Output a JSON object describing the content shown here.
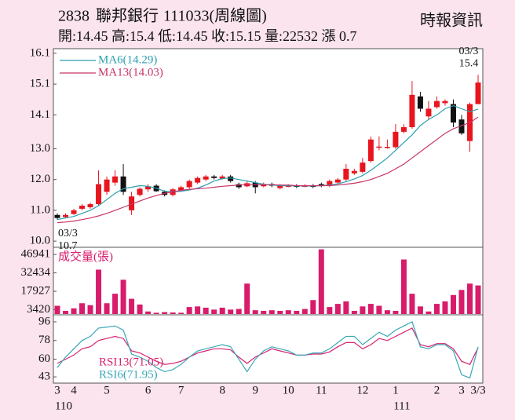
{
  "header": {
    "code": "2838",
    "name": "聯邦銀行",
    "date": "111033(周線圖)",
    "source": "時報資訊",
    "quote": "開:14.45 高:15.4 低:14.45 收:15.15 量:22532 漲 0.7"
  },
  "chart_data": [
    {
      "type": "candlestick",
      "up_color": "#e8141e",
      "down_color": "#111111",
      "ylim": [
        9.85,
        16.25
      ],
      "yticks": [
        {
          "value": 10,
          "label": "10.0"
        },
        {
          "value": 11,
          "label": "11.0"
        },
        {
          "value": 12,
          "label": "12.0"
        },
        {
          "value": 13,
          "label": "13.0"
        },
        14.1,
        15.1,
        16.1
      ],
      "open": [
        10.85,
        10.78,
        10.88,
        11.05,
        11.1,
        11.2,
        11.6,
        11.9,
        12.1,
        11.0,
        11.5,
        11.68,
        11.8,
        11.6,
        11.5,
        11.65,
        11.75,
        11.9,
        12.0,
        12.1,
        12.03,
        12.1,
        11.85,
        11.78,
        11.9,
        11.78,
        11.85,
        11.72,
        11.78,
        11.8,
        11.78,
        11.8,
        11.85,
        11.8,
        11.9,
        12.0,
        12.2,
        12.25,
        12.6,
        13.05,
        13.04,
        13.05,
        13.55,
        13.7,
        14.7,
        14.05,
        14.35,
        14.48,
        14.45,
        13.95,
        13.25,
        14.45
      ],
      "high": [
        10.9,
        10.9,
        11.05,
        11.2,
        11.25,
        12.3,
        12.1,
        12.3,
        12.5,
        11.6,
        11.75,
        11.85,
        11.85,
        11.65,
        11.72,
        11.8,
        12.0,
        12.1,
        12.15,
        12.15,
        12.15,
        12.15,
        11.9,
        11.95,
        11.95,
        11.9,
        11.9,
        11.85,
        11.85,
        11.85,
        11.85,
        11.85,
        11.9,
        12.0,
        12.05,
        12.5,
        12.35,
        12.7,
        13.4,
        13.4,
        13.3,
        13.8,
        13.8,
        15.2,
        14.85,
        14.55,
        14.7,
        14.6,
        14.6,
        14.1,
        14.5,
        15.4
      ],
      "low": [
        10.7,
        10.75,
        10.85,
        11.0,
        11.05,
        11.15,
        11.5,
        11.8,
        11.5,
        10.85,
        11.45,
        11.6,
        11.6,
        11.45,
        11.45,
        11.6,
        11.7,
        11.85,
        11.95,
        12.0,
        12.0,
        11.9,
        11.7,
        11.75,
        11.55,
        11.75,
        11.75,
        11.68,
        11.75,
        11.72,
        11.75,
        11.72,
        11.75,
        11.75,
        11.85,
        11.95,
        12.15,
        12.2,
        12.55,
        12.95,
        13.0,
        13.0,
        13.5,
        13.65,
        14.2,
        13.95,
        14.3,
        14.4,
        13.7,
        13.45,
        12.9,
        14.45
      ],
      "close": [
        10.75,
        10.85,
        11.0,
        11.15,
        11.2,
        11.85,
        12.0,
        12.1,
        11.6,
        11.45,
        11.7,
        11.78,
        11.62,
        11.5,
        11.68,
        11.75,
        11.95,
        12.05,
        12.1,
        12.05,
        12.1,
        11.95,
        11.75,
        11.88,
        11.75,
        11.85,
        11.8,
        11.8,
        11.8,
        11.78,
        11.8,
        11.78,
        11.8,
        11.95,
        12.0,
        12.35,
        12.28,
        12.55,
        13.3,
        13.07,
        13.06,
        13.55,
        13.7,
        14.75,
        14.3,
        14.3,
        14.55,
        14.55,
        13.85,
        13.5,
        14.45,
        15.15
      ],
      "series": [
        {
          "name": "MA6(14.29)",
          "color": "#2b9fb0",
          "values": [
            10.7,
            10.75,
            10.8,
            10.9,
            11.0,
            11.15,
            11.35,
            11.55,
            11.7,
            11.75,
            11.8,
            11.78,
            11.72,
            11.62,
            11.6,
            11.62,
            11.66,
            11.72,
            11.82,
            11.95,
            12.03,
            12.05,
            12.0,
            11.95,
            11.9,
            11.85,
            11.82,
            11.8,
            11.8,
            11.79,
            11.79,
            11.79,
            11.8,
            11.82,
            11.86,
            11.93,
            12.02,
            12.13,
            12.3,
            12.5,
            12.7,
            12.95,
            13.2,
            13.45,
            13.75,
            13.95,
            14.1,
            14.3,
            14.4,
            14.3,
            14.2,
            14.29
          ]
        },
        {
          "name": "MA13(14.03)",
          "color": "#c8346a",
          "values": [
            10.6,
            10.62,
            10.65,
            10.7,
            10.75,
            10.82,
            10.9,
            11.0,
            11.1,
            11.2,
            11.3,
            11.4,
            11.48,
            11.55,
            11.6,
            11.65,
            11.68,
            11.7,
            11.72,
            11.75,
            11.78,
            11.8,
            11.82,
            11.83,
            11.83,
            11.83,
            11.83,
            11.82,
            11.82,
            11.8,
            11.8,
            11.8,
            11.8,
            11.8,
            11.82,
            11.85,
            11.88,
            11.93,
            12.0,
            12.1,
            12.2,
            12.35,
            12.5,
            12.7,
            12.9,
            13.1,
            13.3,
            13.5,
            13.65,
            13.75,
            13.85,
            14.03
          ]
        }
      ],
      "annotations": [
        {
          "date": "03/3",
          "value": 15.4
        },
        {
          "date": "03/3",
          "value": 10.7
        }
      ]
    },
    {
      "type": "bar",
      "title": "成交量(張)",
      "color": "#d81b6a",
      "ylim": [
        0,
        52000
      ],
      "yticks": [
        3420,
        17927,
        32434,
        46941
      ],
      "values": [
        6500,
        2500,
        4500,
        8500,
        7000,
        35000,
        8500,
        16000,
        27000,
        12000,
        7500,
        2000,
        1000,
        1500,
        1200,
        1000,
        5500,
        6000,
        5000,
        3500,
        5000,
        3500,
        4000,
        24000,
        3000,
        2500,
        3000,
        2500,
        3000,
        2500,
        4000,
        11000,
        51000,
        5500,
        8000,
        10000,
        2500,
        6000,
        8000,
        6500,
        3000,
        2500,
        43000,
        16000,
        6000,
        2000,
        8000,
        10000,
        15000,
        19000,
        24000,
        22532
      ]
    },
    {
      "type": "line",
      "ylim": [
        37,
        102
      ],
      "yticks": [
        43,
        60,
        78,
        96
      ],
      "categories": [
        "3",
        null,
        "4",
        null,
        null,
        null,
        "5",
        null,
        null,
        null,
        null,
        "6",
        null,
        null,
        null,
        "7",
        null,
        null,
        null,
        null,
        "8",
        null,
        null,
        null,
        "9",
        null,
        null,
        null,
        "10",
        null,
        null,
        null,
        "11",
        null,
        null,
        null,
        null,
        "12",
        null,
        null,
        null,
        "1",
        null,
        null,
        null,
        null,
        "2",
        null,
        null,
        "3",
        null,
        "3/3"
      ],
      "year_labels": [
        "110",
        null,
        null,
        null,
        null,
        null,
        null,
        null,
        null,
        null,
        null,
        null,
        null,
        null,
        null,
        null,
        null,
        null,
        null,
        null,
        null,
        null,
        null,
        null,
        null,
        null,
        null,
        null,
        null,
        null,
        null,
        null,
        null,
        null,
        null,
        null,
        null,
        null,
        null,
        null,
        null,
        "111",
        null,
        null,
        null,
        null,
        null,
        null,
        null,
        null,
        null,
        null
      ],
      "series": [
        {
          "name": "RSI13(71.05)",
          "color": "#d6236f",
          "values": [
            56,
            60,
            64,
            70,
            72,
            78,
            80,
            82,
            80,
            68,
            66,
            62,
            58,
            55,
            56,
            58,
            62,
            66,
            68,
            70,
            70,
            69,
            62,
            56,
            62,
            66,
            70,
            68,
            66,
            64,
            64,
            65,
            65,
            67,
            72,
            76,
            76,
            70,
            74,
            80,
            78,
            82,
            86,
            90,
            74,
            72,
            75,
            75,
            70,
            58,
            55,
            71.05
          ]
        },
        {
          "name": "RSI6(71.95)",
          "color": "#39a8b8",
          "values": [
            52,
            62,
            70,
            78,
            82,
            90,
            91,
            92,
            88,
            65,
            62,
            58,
            52,
            48,
            50,
            55,
            62,
            68,
            70,
            72,
            74,
            72,
            60,
            48,
            60,
            68,
            72,
            70,
            68,
            64,
            64,
            66,
            66,
            70,
            76,
            82,
            82,
            74,
            80,
            86,
            82,
            88,
            92,
            96,
            72,
            70,
            74,
            74,
            68,
            45,
            42,
            71.95
          ]
        }
      ]
    }
  ]
}
